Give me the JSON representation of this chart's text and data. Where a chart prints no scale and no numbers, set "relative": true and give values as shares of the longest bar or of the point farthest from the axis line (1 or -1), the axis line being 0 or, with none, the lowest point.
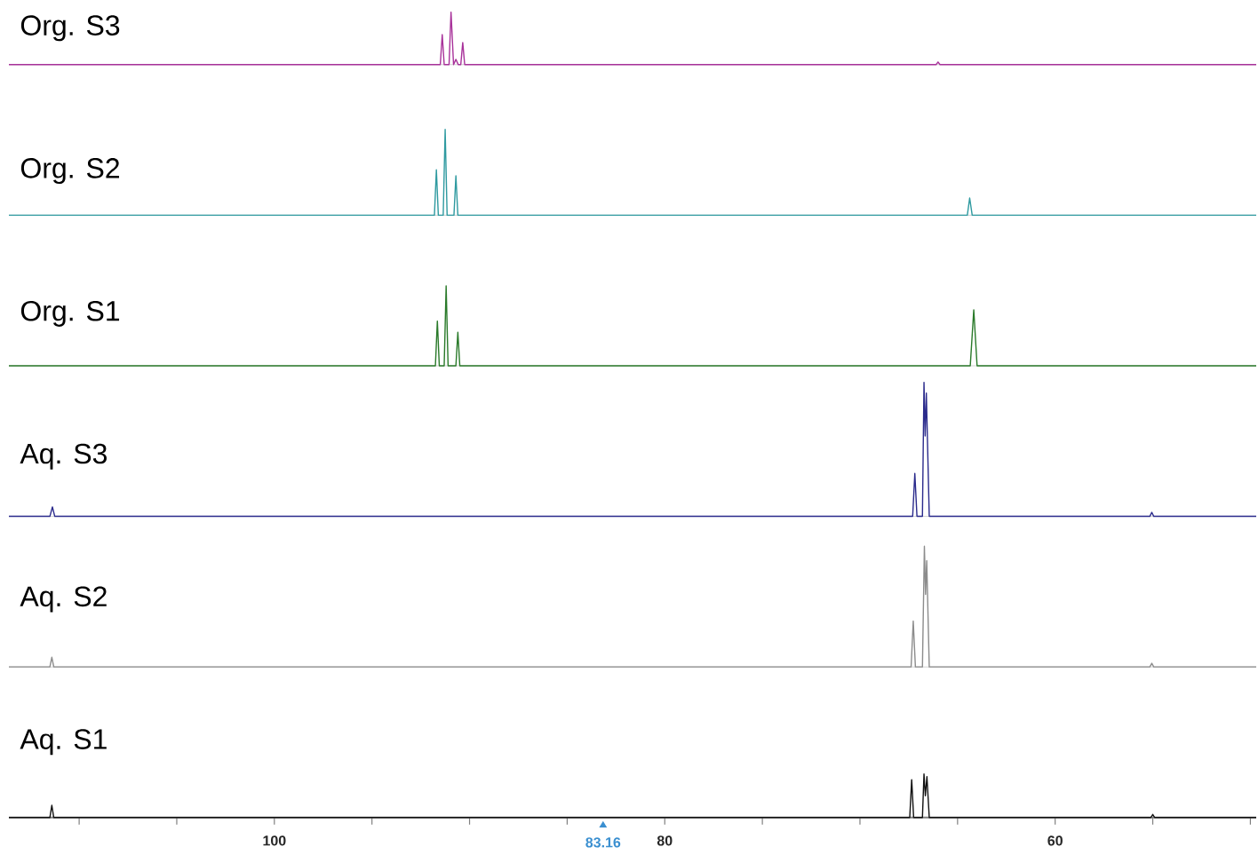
{
  "chart_data": [
    {
      "type": "line",
      "relative": true,
      "xlim": [
        113.6,
        49.7
      ],
      "tick_labels": false,
      "series": [
        {
          "name": "Org. S3",
          "color": "#a8329a",
          "x": [
            113.6,
            91.5,
            91.4,
            91.3,
            91.05,
            90.95,
            90.82,
            90.7,
            90.58,
            90.45,
            90.35,
            90.25,
            66.1,
            66.0,
            65.9,
            49.7
          ],
          "values": [
            0,
            0,
            0.57,
            0,
            0,
            1,
            0,
            0.1,
            0,
            0,
            0.42,
            0,
            0,
            0.05,
            0,
            0
          ]
        }
      ]
    },
    {
      "type": "line",
      "relative": true,
      "xlim": [
        113.6,
        49.7
      ],
      "tick_labels": false,
      "series": [
        {
          "name": "Org. S2",
          "color": "#2f9aa0",
          "x": [
            113.6,
            91.8,
            91.7,
            91.6,
            91.35,
            91.25,
            91.15,
            90.8,
            90.7,
            90.6,
            64.5,
            64.38,
            64.25,
            49.7
          ],
          "values": [
            0,
            0,
            0.53,
            0,
            0,
            1,
            0,
            0,
            0.46,
            0,
            0,
            0.2,
            0,
            0
          ]
        }
      ]
    },
    {
      "type": "line",
      "relative": true,
      "xlim": [
        113.6,
        49.7
      ],
      "tick_labels": false,
      "series": [
        {
          "name": "Org. S1",
          "color": "#2a7a2a",
          "x": [
            113.6,
            91.75,
            91.65,
            91.55,
            91.3,
            91.2,
            91.1,
            90.7,
            90.6,
            90.5,
            64.35,
            64.17,
            64.0,
            49.7
          ],
          "values": [
            0,
            0,
            0.56,
            0,
            0,
            1,
            0,
            0,
            0.42,
            0,
            0,
            0.7,
            0,
            0
          ]
        }
      ]
    },
    {
      "type": "line",
      "relative": true,
      "xlim": [
        113.6,
        49.7
      ],
      "tick_labels": false,
      "series": [
        {
          "name": "Aq. S3",
          "color": "#2b2b8c",
          "x": [
            113.6,
            111.5,
            111.37,
            111.25,
            67.3,
            67.19,
            67.08,
            66.8,
            66.72,
            66.66,
            66.6,
            66.45,
            55.15,
            55.05,
            54.95,
            49.7
          ],
          "values": [
            0,
            0,
            0.07,
            0,
            0,
            0.32,
            0,
            0,
            1,
            0.6,
            0.92,
            0,
            0,
            0.03,
            0,
            0
          ]
        }
      ]
    },
    {
      "type": "line",
      "relative": true,
      "xlim": [
        113.6,
        49.7
      ],
      "tick_labels": false,
      "series": [
        {
          "name": "Aq. S2",
          "color": "#8c8c8c",
          "x": [
            113.6,
            111.5,
            111.4,
            111.3,
            67.38,
            67.27,
            67.16,
            66.8,
            66.7,
            66.64,
            66.58,
            66.45,
            55.15,
            55.05,
            54.95,
            49.7
          ],
          "values": [
            0,
            0,
            0.08,
            0,
            0,
            0.38,
            0,
            0,
            1,
            0.6,
            0.88,
            0,
            0,
            0.03,
            0,
            0
          ]
        }
      ]
    },
    {
      "type": "line",
      "relative": true,
      "xlim": [
        113.6,
        49.7
      ],
      "tick_labels": "x",
      "xticks": [
        {
          "value": 110,
          "label": null
        },
        {
          "value": 105,
          "label": null
        },
        100,
        {
          "value": 95,
          "label": null
        },
        {
          "value": 90,
          "label": null
        },
        {
          "value": 85,
          "label": null
        },
        83.16,
        80,
        {
          "value": 75,
          "label": null
        },
        {
          "value": 70,
          "label": null
        },
        {
          "value": 65,
          "label": null
        },
        60,
        {
          "value": 55,
          "label": null
        },
        {
          "value": 50,
          "label": null
        }
      ],
      "series": [
        {
          "name": "Aq. S1",
          "color": "#111111",
          "x": [
            113.6,
            111.5,
            111.4,
            111.3,
            67.45,
            67.35,
            67.25,
            66.8,
            66.72,
            66.65,
            66.57,
            66.45,
            55.1,
            55.0,
            54.9,
            49.7
          ],
          "values": [
            0,
            0,
            0.28,
            0,
            0,
            0.87,
            0,
            0,
            1,
            0.5,
            0.94,
            0,
            0,
            0.07,
            0,
            0
          ]
        }
      ]
    }
  ]
}
